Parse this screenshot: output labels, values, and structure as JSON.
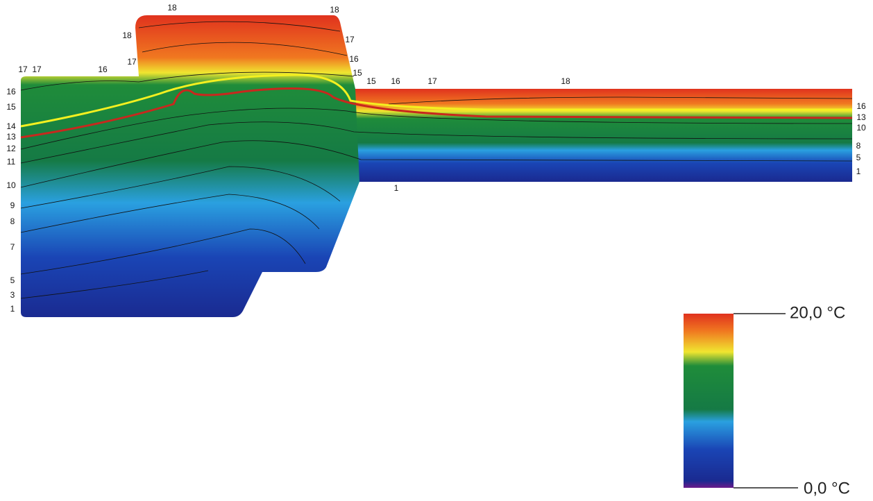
{
  "isotherm_labels": [
    "18",
    "18",
    "18",
    "17",
    "16",
    "17",
    "15",
    "17",
    "17",
    "16",
    "15",
    "16",
    "17",
    "18",
    "16",
    "15",
    "14",
    "13",
    "12",
    "11",
    "10",
    "9",
    "8",
    "7",
    "5",
    "3",
    "1",
    "16",
    "13",
    "10",
    "8",
    "5",
    "1",
    "1"
  ],
  "color_scale": {
    "max_label": "20,0 °C",
    "min_label": "0,0 °C"
  }
}
